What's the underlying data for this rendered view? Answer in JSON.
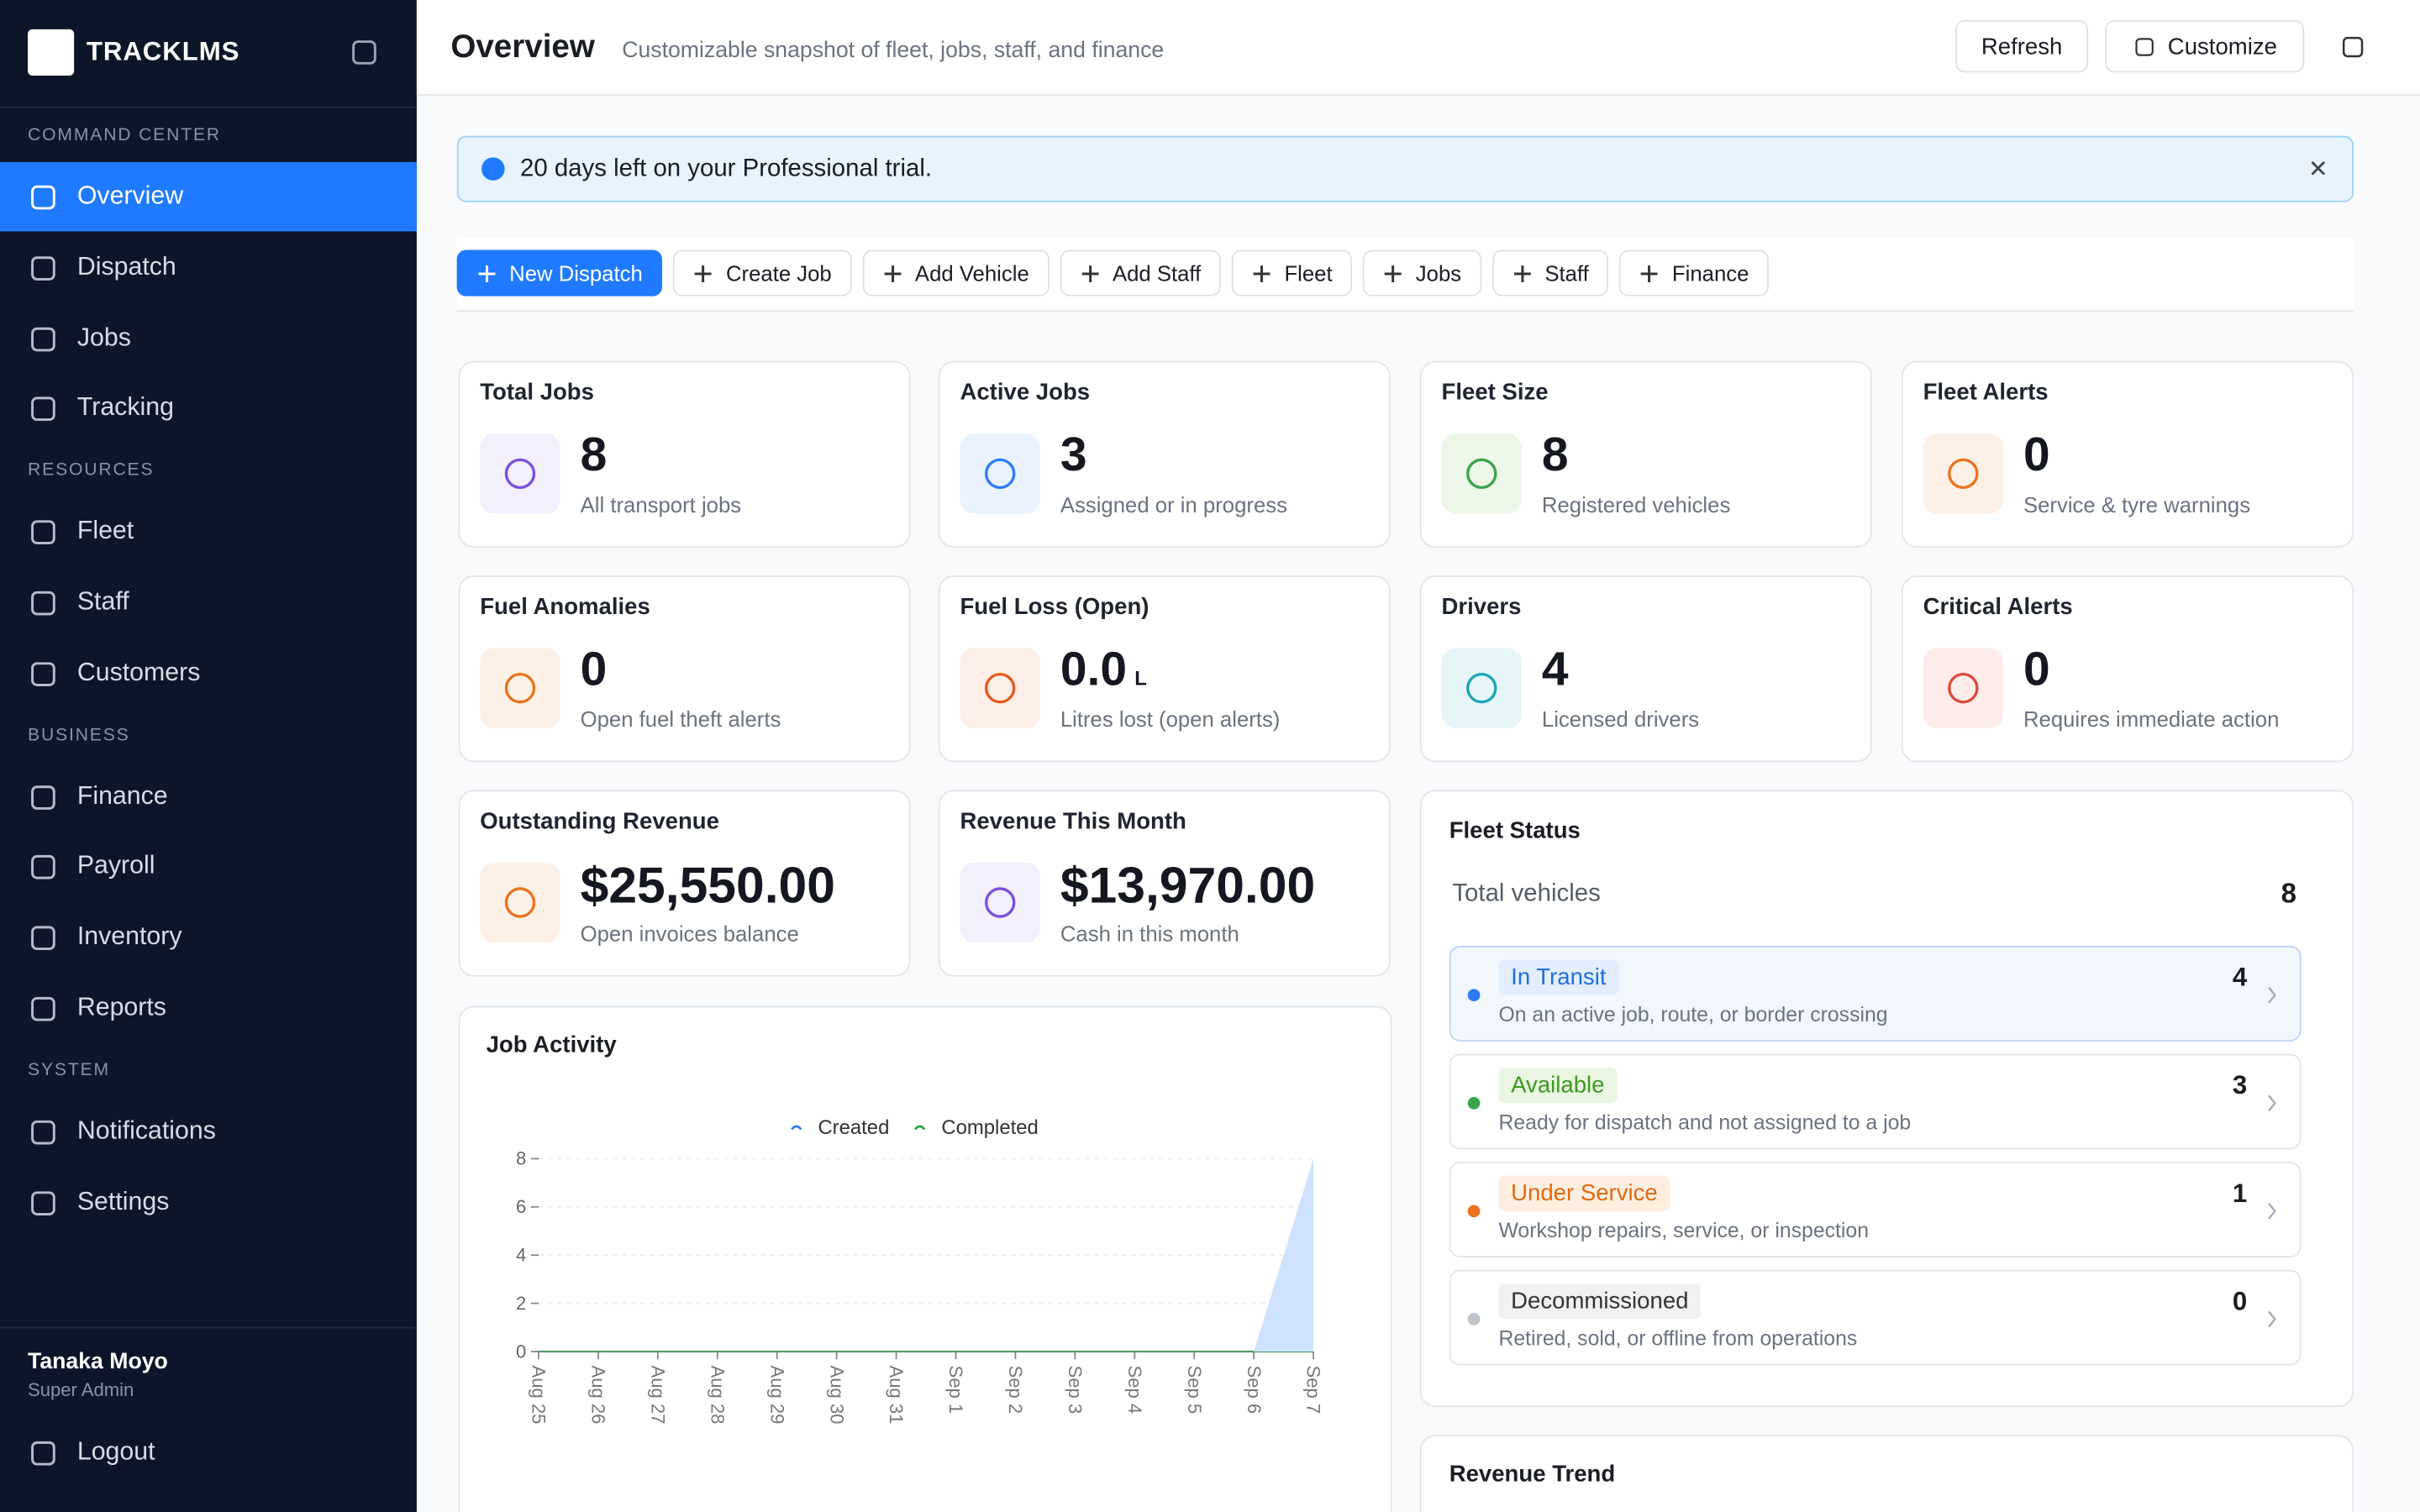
{
  "sidebar": {
    "brand": "TRACKLMS",
    "sections": [
      {
        "title": "COMMAND CENTER",
        "items": [
          "Overview",
          "Dispatch",
          "Jobs",
          "Tracking"
        ]
      },
      {
        "title": "RESOURCES",
        "items": [
          "Fleet",
          "Staff",
          "Customers"
        ]
      },
      {
        "title": "BUSINESS",
        "items": [
          "Finance",
          "Payroll",
          "Inventory",
          "Reports"
        ]
      },
      {
        "title": "SYSTEM",
        "items": [
          "Notifications",
          "Settings"
        ]
      }
    ],
    "user": {
      "name": "Tanaka Moyo",
      "role": "Super Admin"
    },
    "logout": "Logout"
  },
  "header": {
    "title": "Overview",
    "subtitle": "Customizable snapshot of fleet, jobs, staff, and finance",
    "buttons": [
      "Refresh",
      "Customize"
    ]
  },
  "banner": "20 days left on your Professional trial.",
  "actions": [
    "New Dispatch",
    "Create Job",
    "Add Vehicle",
    "Add Staff",
    "Fleet",
    "Jobs",
    "Staff",
    "Finance"
  ],
  "stats": [
    {
      "title": "Total Jobs",
      "value": "8",
      "caption": "All transport jobs"
    },
    {
      "title": "Active Jobs",
      "value": "3",
      "caption": "Assigned or in progress"
    },
    {
      "title": "Fleet Size",
      "value": "8",
      "caption": "Registered vehicles"
    },
    {
      "title": "Fleet Alerts",
      "value": "0",
      "caption": "Service & tyre warnings"
    },
    {
      "title": "Fuel Anomalies",
      "value": "0",
      "caption": "Open fuel theft alerts"
    },
    {
      "title": "Fuel Loss (Open)",
      "value": "0.0",
      "unit": "L",
      "caption": "Litres lost (open alerts)"
    },
    {
      "title": "Drivers",
      "value": "4",
      "caption": "Licensed drivers"
    },
    {
      "title": "Critical Alerts",
      "value": "0",
      "caption": "Requires immediate action"
    },
    {
      "title": "Outstanding Revenue",
      "value": "$25,550.00",
      "caption": "Open invoices balance"
    },
    {
      "title": "Revenue This Month",
      "value": "$13,970.00",
      "caption": "Cash in this month"
    }
  ],
  "fleet_status": {
    "title": "Fleet Status",
    "total_label": "Total vehicles",
    "total": "8",
    "items": [
      {
        "label": "In Transit",
        "count": "4",
        "description": "On an active job, route, or border crossing"
      },
      {
        "label": "Available",
        "count": "3",
        "description": "Ready for dispatch and not assigned to a job"
      },
      {
        "label": "Under Service",
        "count": "1",
        "description": "Workshop repairs, service, or inspection"
      },
      {
        "label": "Decommissioned",
        "count": "0",
        "description": "Retired, sold, or offline from operations"
      }
    ]
  },
  "chart_data": {
    "type": "area",
    "title": "Job Activity",
    "categories": [
      "Aug 25",
      "Aug 26",
      "Aug 27",
      "Aug 28",
      "Aug 29",
      "Aug 30",
      "Aug 31",
      "Sep 1",
      "Sep 2",
      "Sep 3",
      "Sep 4",
      "Sep 5",
      "Sep 6",
      "Sep 7"
    ],
    "series": [
      {
        "name": "Created",
        "color": "#2f7bf6",
        "values": [
          0,
          0,
          0,
          0,
          0,
          0,
          0,
          0,
          0,
          0,
          0,
          0,
          0,
          8
        ]
      },
      {
        "name": "Completed",
        "color": "#22a845",
        "values": [
          0,
          0,
          0,
          0,
          0,
          0,
          0,
          0,
          0,
          0,
          0,
          0,
          0,
          0
        ]
      }
    ],
    "ylim": [
      0,
      8
    ],
    "yticks": [
      0,
      2,
      4,
      6,
      8
    ],
    "grid": true
  },
  "revenue_trend": {
    "title": "Revenue Trend"
  }
}
